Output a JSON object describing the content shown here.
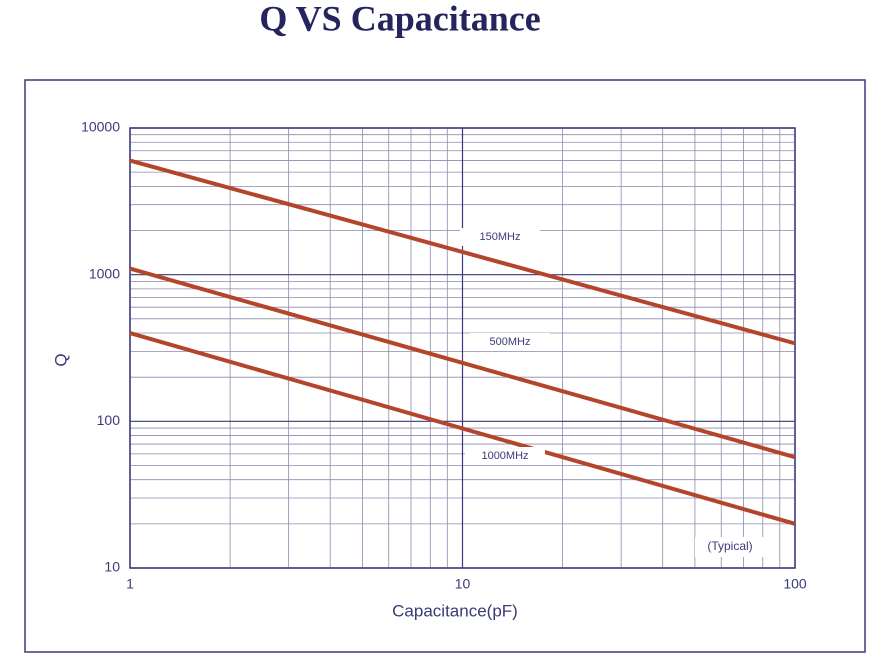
{
  "chart_data": {
    "type": "line",
    "title": "Q VS Capacitance",
    "xlabel": "Capacitance(pF)",
    "ylabel": "Q",
    "x": [
      1,
      100
    ],
    "series": [
      {
        "name": "150MHz",
        "color": "#b5452a",
        "values": [
          6000,
          340
        ]
      },
      {
        "name": "500MHz",
        "color": "#b5452a",
        "values": [
          1100,
          57
        ]
      },
      {
        "name": "1000MHz",
        "color": "#b5452a",
        "values": [
          400,
          20
        ]
      }
    ],
    "annotation": "(Typical)",
    "xlim": [
      1,
      100
    ],
    "xticks": [
      1,
      10,
      100
    ],
    "ylim": [
      10,
      10000
    ],
    "yticks": [
      10,
      100,
      1000,
      10000
    ],
    "xscale": "log",
    "yscale": "log",
    "grid": true
  }
}
